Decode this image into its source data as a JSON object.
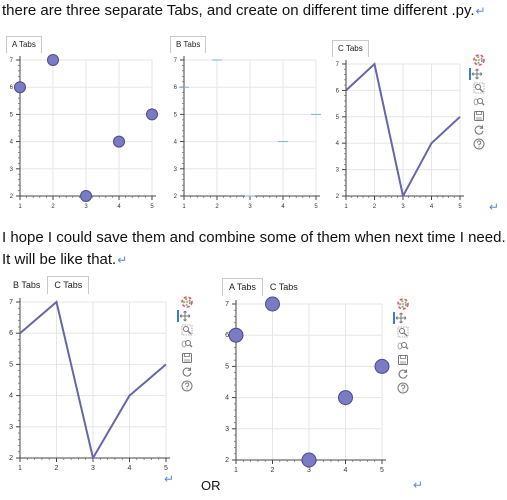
{
  "doc": {
    "line1": "there are three separate Tabs, and create on different time different .py.",
    "line2": "I hope I could save them and combine some of them when next time I need.",
    "line3": "It will be like that.",
    "or_text": "OR",
    "para_mark": "↵"
  },
  "panels": {
    "top_a": {
      "tabs": [
        "A Tabs"
      ]
    },
    "top_b": {
      "tabs": [
        "B Tabs"
      ]
    },
    "top_c": {
      "tabs": [
        "C Tabs"
      ]
    },
    "bottom_left": {
      "tabs": [
        "B Tabs",
        "C Tabs"
      ],
      "active": "C Tabs"
    },
    "bottom_right": {
      "tabs": [
        "A Tabs",
        "C Tabs"
      ],
      "active": "A Tabs"
    }
  },
  "toolbar_icons": [
    "bokeh-logo-icon",
    "pan-icon",
    "box-zoom-icon",
    "wheel-zoom-icon",
    "save-icon",
    "reset-icon",
    "help-icon"
  ],
  "colors": {
    "series": "#6666aa",
    "marker_fill": "#7b7bc4",
    "marker_stroke": "#4b4b8a",
    "grid": "#e6e6e6",
    "tab_border": "#c9c9c9",
    "toolbar_active": "#3d7bd9"
  },
  "chart_data": [
    {
      "id": "top_a",
      "type": "scatter",
      "x": [
        1,
        2,
        3,
        4,
        5
      ],
      "y": [
        6,
        7,
        2,
        4,
        5
      ],
      "xlim": [
        1,
        5
      ],
      "ylim": [
        2,
        7
      ],
      "xticks": [
        1,
        2,
        3,
        4,
        5
      ],
      "yticks": [
        2,
        3,
        4,
        5,
        6,
        7
      ]
    },
    {
      "id": "top_b",
      "type": "scatter",
      "x": [
        1,
        2,
        3,
        4,
        5
      ],
      "y": [
        6,
        7,
        2,
        4,
        5
      ],
      "xlim": [
        1,
        5
      ],
      "ylim": [
        2,
        7
      ],
      "xticks": [
        1,
        2,
        3,
        4,
        5
      ],
      "yticks": [
        2,
        3,
        4,
        5,
        6,
        7
      ]
    },
    {
      "id": "top_c",
      "type": "line",
      "x": [
        1,
        2,
        3,
        4,
        5
      ],
      "y": [
        6,
        7,
        2,
        4,
        5
      ],
      "xlim": [
        1,
        5
      ],
      "ylim": [
        2,
        7
      ],
      "xticks": [
        1,
        2,
        3,
        4,
        5
      ],
      "yticks": [
        2,
        3,
        4,
        5,
        6,
        7
      ]
    },
    {
      "id": "bottom_left",
      "type": "line",
      "x": [
        1,
        2,
        3,
        4,
        5
      ],
      "y": [
        6,
        7,
        2,
        4,
        5
      ],
      "xlim": [
        1,
        5
      ],
      "ylim": [
        2,
        7
      ],
      "xticks": [
        1,
        2,
        3,
        4,
        5
      ],
      "yticks": [
        2,
        3,
        4,
        5,
        6,
        7
      ]
    },
    {
      "id": "bottom_right",
      "type": "scatter",
      "x": [
        1,
        2,
        3,
        4,
        5
      ],
      "y": [
        6,
        7,
        2,
        4,
        5
      ],
      "xlim": [
        1,
        5
      ],
      "ylim": [
        2,
        7
      ],
      "xticks": [
        1,
        2,
        3,
        4,
        5
      ],
      "yticks": [
        2,
        3,
        4,
        5,
        6,
        7
      ]
    }
  ]
}
